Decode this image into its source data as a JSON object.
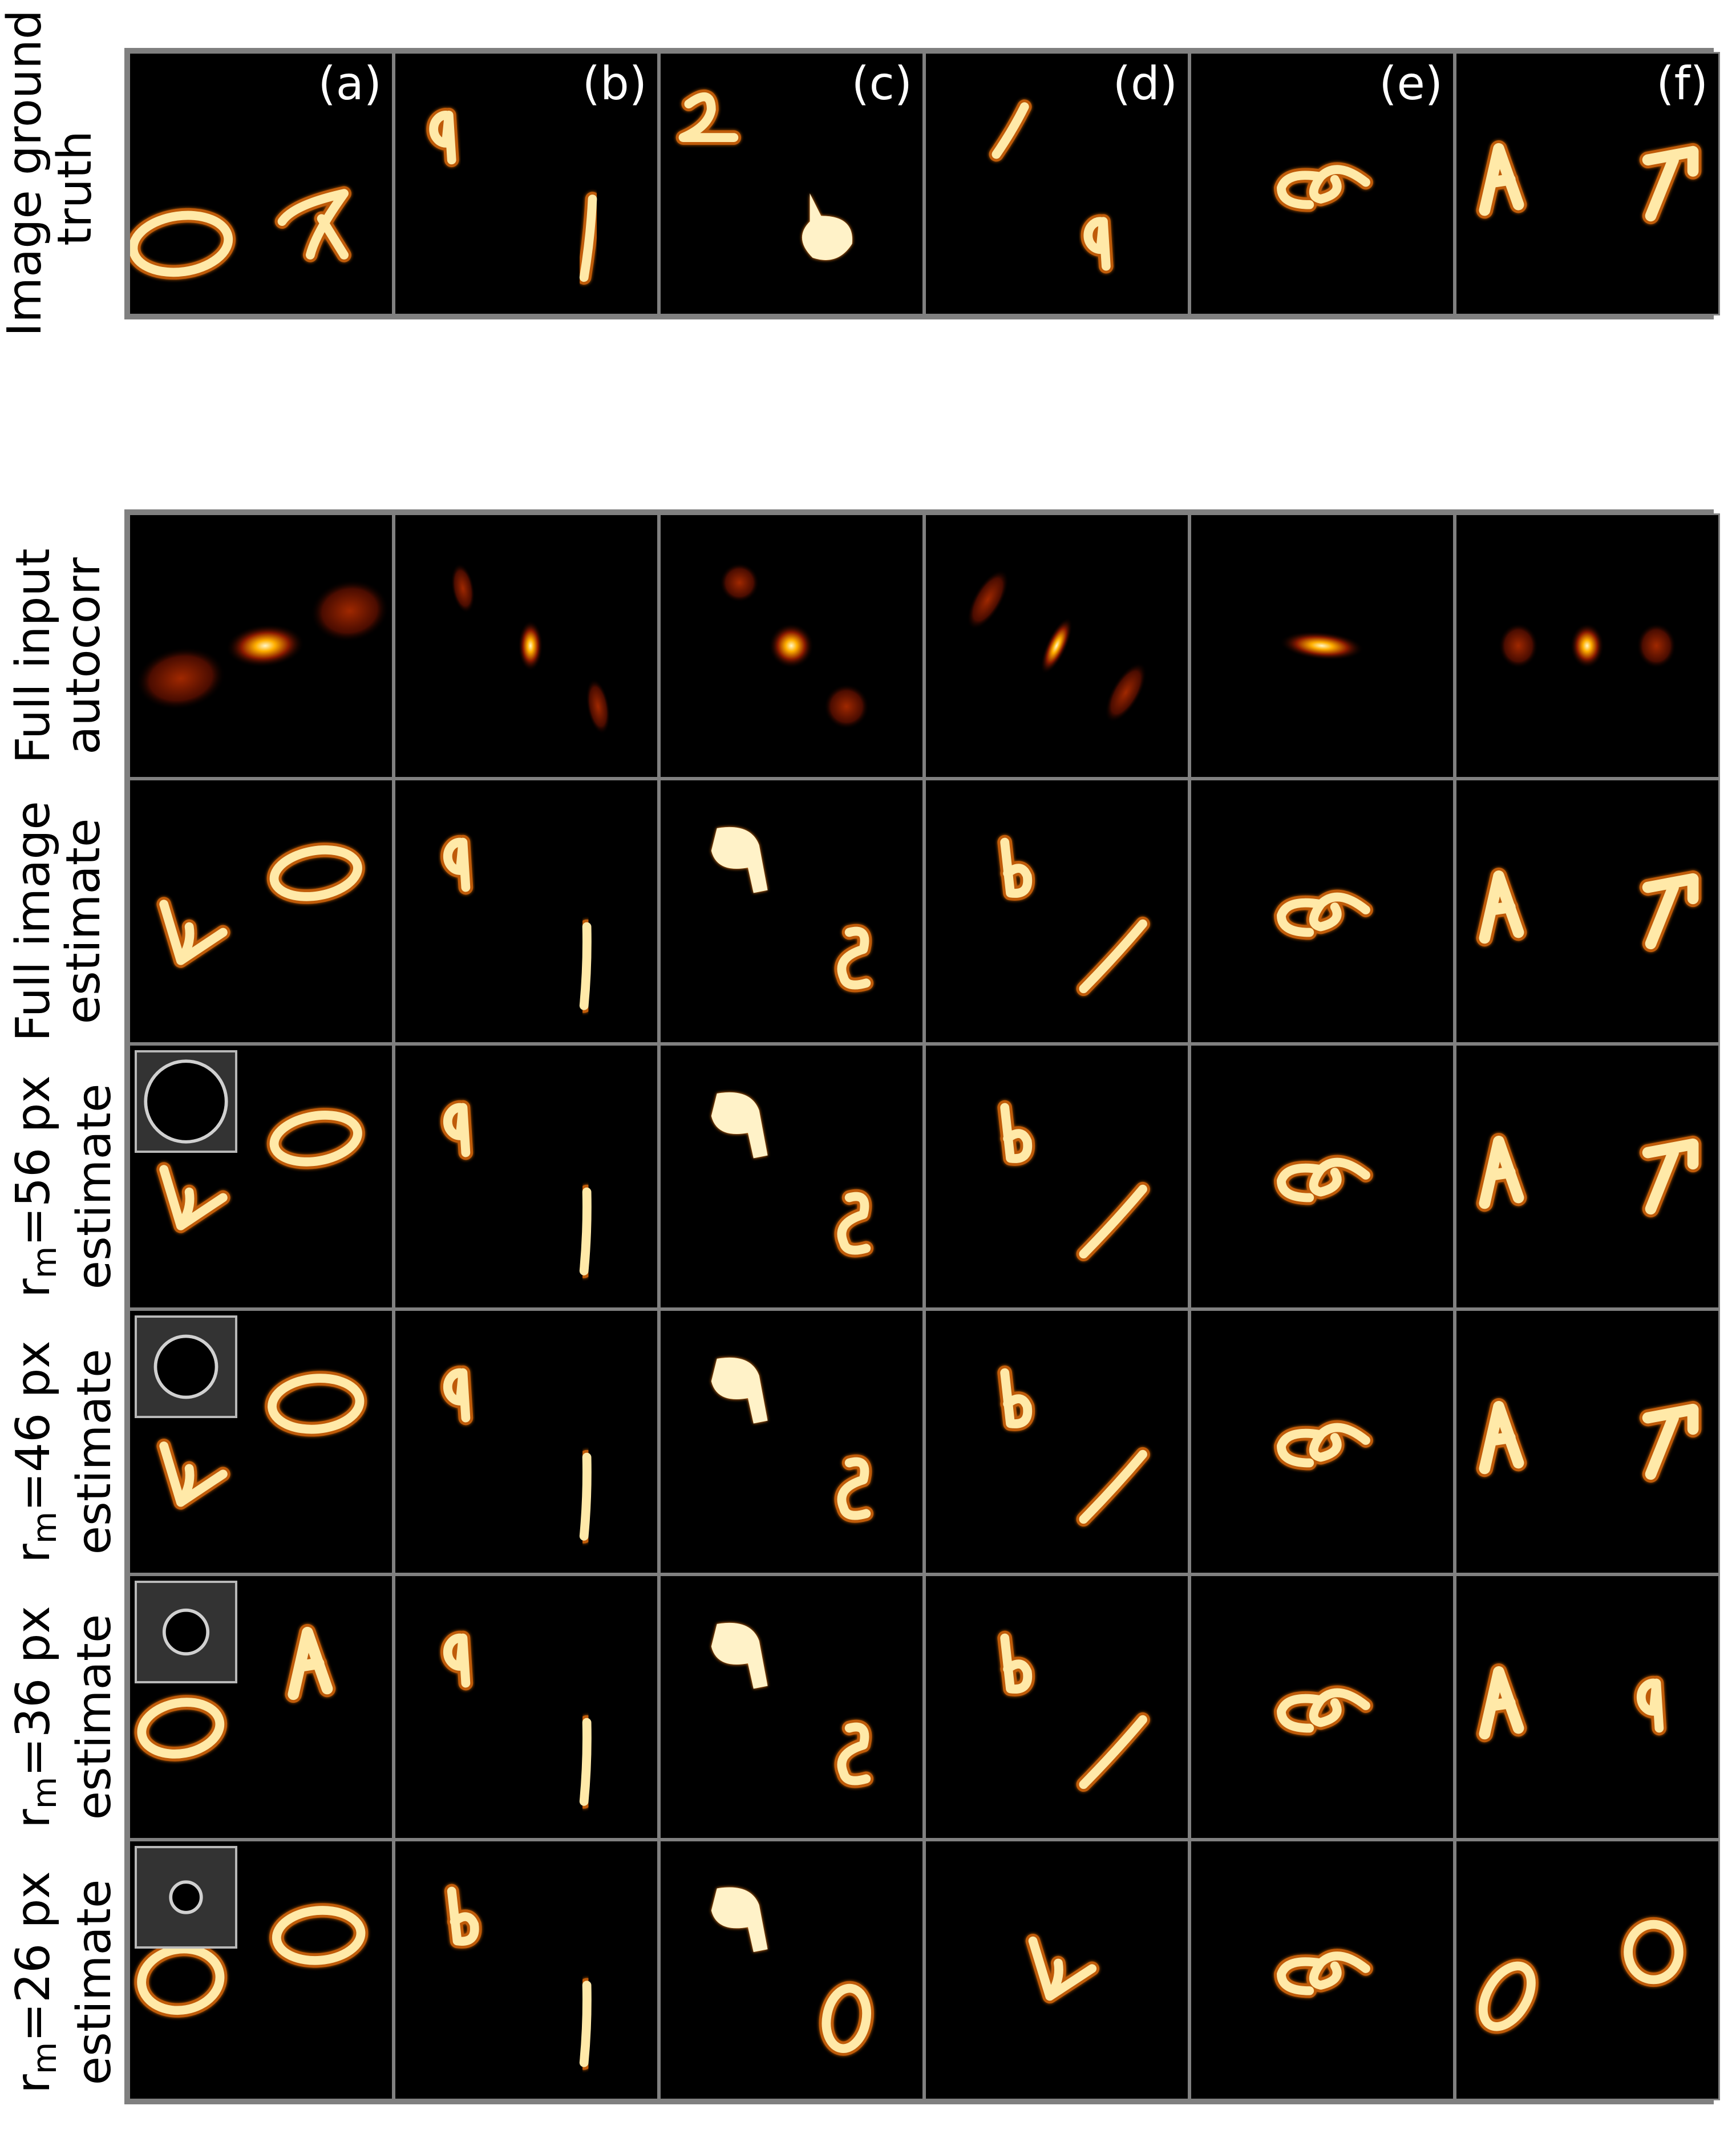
{
  "panels": [
    "(a)",
    "(b)",
    "(c)",
    "(d)",
    "(e)",
    "(f)"
  ],
  "rows": {
    "ground_truth": {
      "line1": "Image ground",
      "line2": "truth"
    },
    "autocorr": {
      "line1": "Full input",
      "line2": "autocorr"
    },
    "full_estimate": {
      "line1": "Full image",
      "line2": "estimate"
    },
    "r56": {
      "prefix": "r",
      "sub": "m",
      "rest": "=56 px",
      "line2": "estimate"
    },
    "r46": {
      "prefix": "r",
      "sub": "m",
      "rest": "=46 px",
      "line2": "estimate"
    },
    "r36": {
      "prefix": "r",
      "sub": "m",
      "rest": "=36 px",
      "line2": "estimate"
    },
    "r26": {
      "prefix": "r",
      "sub": "m",
      "rest": "=26 px",
      "line2": "estimate"
    }
  },
  "colormap": {
    "background": "#000000",
    "glow": "#ff6a00",
    "core": "#fff2c0",
    "border": "#808080"
  },
  "mask_radius_levels": {
    "r56": 56,
    "r46": 46,
    "r36": 36,
    "r26": 26
  }
}
